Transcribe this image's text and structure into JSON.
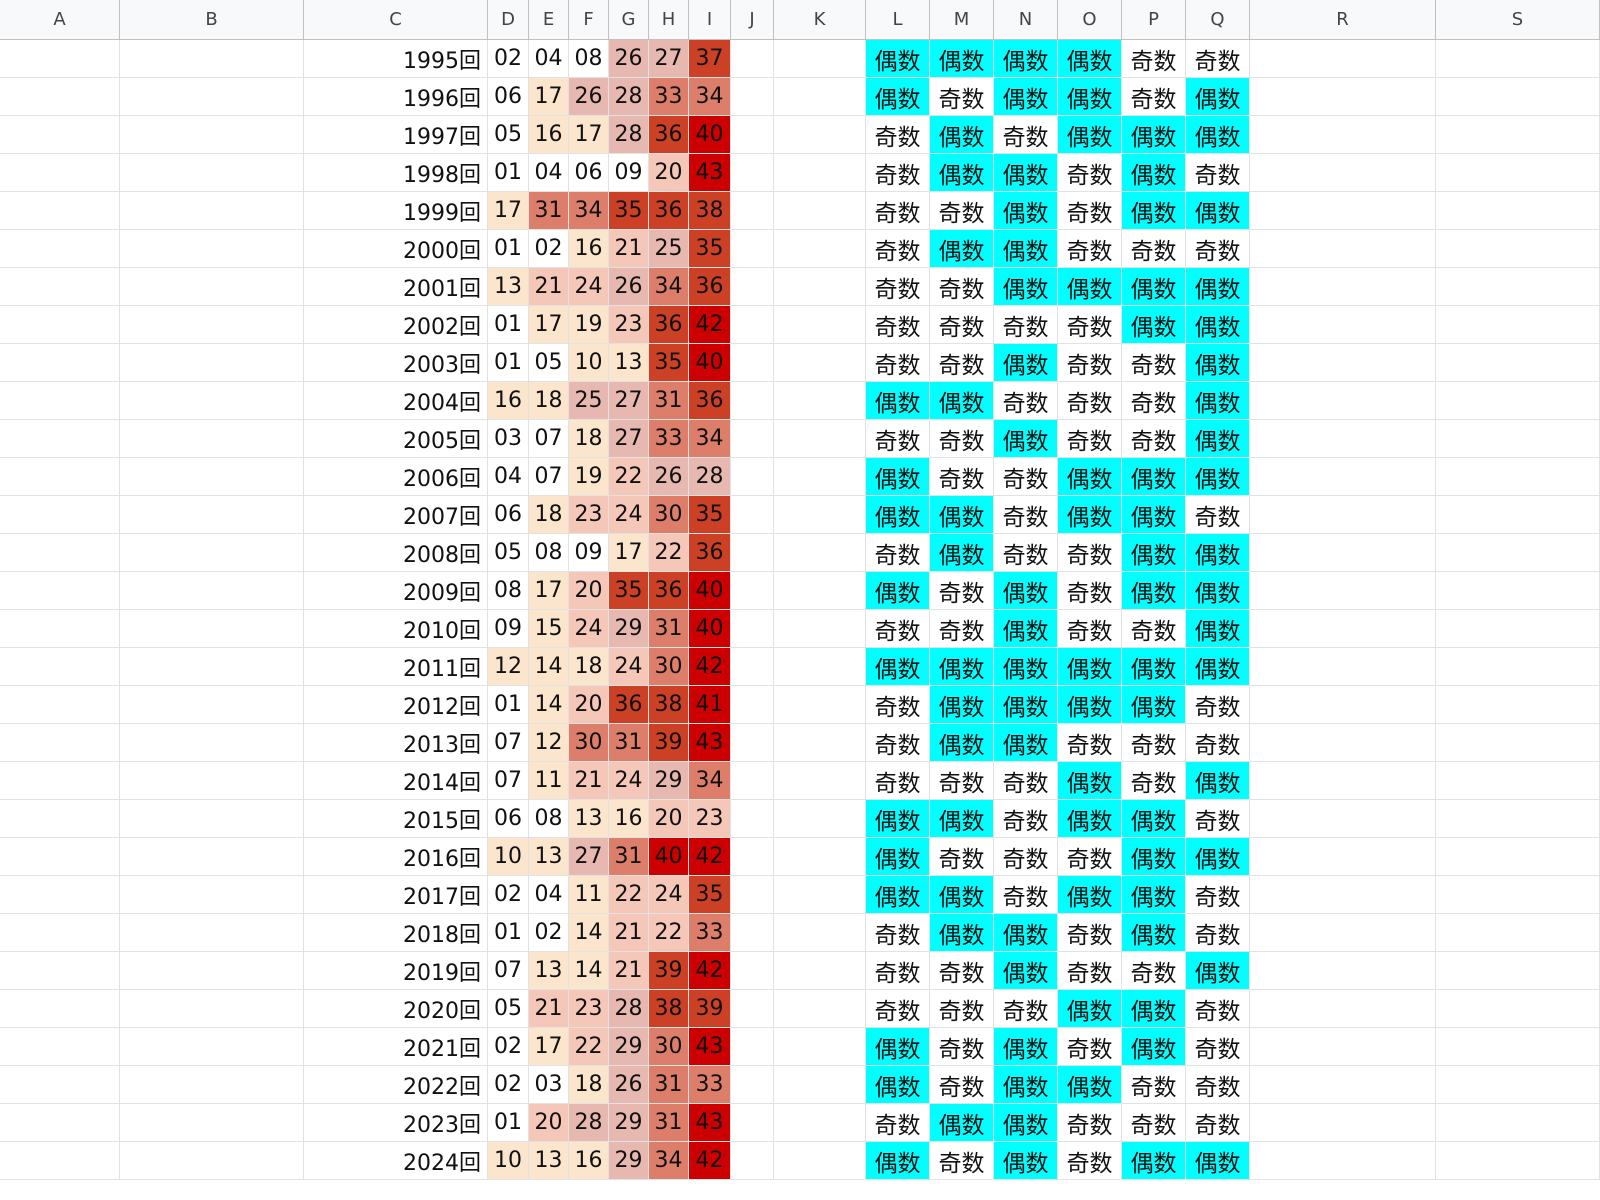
{
  "sheet": {
    "column_headers": [
      "A",
      "B",
      "C",
      "D",
      "E",
      "F",
      "G",
      "H",
      "I",
      "J",
      "K",
      "L",
      "M",
      "N",
      "O",
      "P",
      "Q",
      "R",
      "S"
    ],
    "parity_labels": {
      "even": "偶数",
      "odd": "奇数"
    },
    "colors": {
      "even_highlight": "#00ffff",
      "heat_scale": [
        "#ffffff",
        "#fce5cd",
        "#f4c7b8",
        "#e6b8af",
        "#dd7e6b",
        "#cc4125",
        "#cc0000"
      ]
    },
    "rows": [
      {
        "round": "1995回",
        "numbers": [
          "02",
          "04",
          "08",
          "26",
          "27",
          "37"
        ],
        "parity": [
          "偶数",
          "偶数",
          "偶数",
          "偶数",
          "奇数",
          "奇数"
        ]
      },
      {
        "round": "1996回",
        "numbers": [
          "06",
          "17",
          "26",
          "28",
          "33",
          "34"
        ],
        "parity": [
          "偶数",
          "奇数",
          "偶数",
          "偶数",
          "奇数",
          "偶数"
        ]
      },
      {
        "round": "1997回",
        "numbers": [
          "05",
          "16",
          "17",
          "28",
          "36",
          "40"
        ],
        "parity": [
          "奇数",
          "偶数",
          "奇数",
          "偶数",
          "偶数",
          "偶数"
        ]
      },
      {
        "round": "1998回",
        "numbers": [
          "01",
          "04",
          "06",
          "09",
          "20",
          "43"
        ],
        "parity": [
          "奇数",
          "偶数",
          "偶数",
          "奇数",
          "偶数",
          "奇数"
        ]
      },
      {
        "round": "1999回",
        "numbers": [
          "17",
          "31",
          "34",
          "35",
          "36",
          "38"
        ],
        "parity": [
          "奇数",
          "奇数",
          "偶数",
          "奇数",
          "偶数",
          "偶数"
        ]
      },
      {
        "round": "2000回",
        "numbers": [
          "01",
          "02",
          "16",
          "21",
          "25",
          "35"
        ],
        "parity": [
          "奇数",
          "偶数",
          "偶数",
          "奇数",
          "奇数",
          "奇数"
        ]
      },
      {
        "round": "2001回",
        "numbers": [
          "13",
          "21",
          "24",
          "26",
          "34",
          "36"
        ],
        "parity": [
          "奇数",
          "奇数",
          "偶数",
          "偶数",
          "偶数",
          "偶数"
        ]
      },
      {
        "round": "2002回",
        "numbers": [
          "01",
          "17",
          "19",
          "23",
          "36",
          "42"
        ],
        "parity": [
          "奇数",
          "奇数",
          "奇数",
          "奇数",
          "偶数",
          "偶数"
        ]
      },
      {
        "round": "2003回",
        "numbers": [
          "01",
          "05",
          "10",
          "13",
          "35",
          "40"
        ],
        "parity": [
          "奇数",
          "奇数",
          "偶数",
          "奇数",
          "奇数",
          "偶数"
        ]
      },
      {
        "round": "2004回",
        "numbers": [
          "16",
          "18",
          "25",
          "27",
          "31",
          "36"
        ],
        "parity": [
          "偶数",
          "偶数",
          "奇数",
          "奇数",
          "奇数",
          "偶数"
        ]
      },
      {
        "round": "2005回",
        "numbers": [
          "03",
          "07",
          "18",
          "27",
          "33",
          "34"
        ],
        "parity": [
          "奇数",
          "奇数",
          "偶数",
          "奇数",
          "奇数",
          "偶数"
        ]
      },
      {
        "round": "2006回",
        "numbers": [
          "04",
          "07",
          "19",
          "22",
          "26",
          "28"
        ],
        "parity": [
          "偶数",
          "奇数",
          "奇数",
          "偶数",
          "偶数",
          "偶数"
        ]
      },
      {
        "round": "2007回",
        "numbers": [
          "06",
          "18",
          "23",
          "24",
          "30",
          "35"
        ],
        "parity": [
          "偶数",
          "偶数",
          "奇数",
          "偶数",
          "偶数",
          "奇数"
        ]
      },
      {
        "round": "2008回",
        "numbers": [
          "05",
          "08",
          "09",
          "17",
          "22",
          "36"
        ],
        "parity": [
          "奇数",
          "偶数",
          "奇数",
          "奇数",
          "偶数",
          "偶数"
        ]
      },
      {
        "round": "2009回",
        "numbers": [
          "08",
          "17",
          "20",
          "35",
          "36",
          "40"
        ],
        "parity": [
          "偶数",
          "奇数",
          "偶数",
          "奇数",
          "偶数",
          "偶数"
        ]
      },
      {
        "round": "2010回",
        "numbers": [
          "09",
          "15",
          "24",
          "29",
          "31",
          "40"
        ],
        "parity": [
          "奇数",
          "奇数",
          "偶数",
          "奇数",
          "奇数",
          "偶数"
        ]
      },
      {
        "round": "2011回",
        "numbers": [
          "12",
          "14",
          "18",
          "24",
          "30",
          "42"
        ],
        "parity": [
          "偶数",
          "偶数",
          "偶数",
          "偶数",
          "偶数",
          "偶数"
        ]
      },
      {
        "round": "2012回",
        "numbers": [
          "01",
          "14",
          "20",
          "36",
          "38",
          "41"
        ],
        "parity": [
          "奇数",
          "偶数",
          "偶数",
          "偶数",
          "偶数",
          "奇数"
        ]
      },
      {
        "round": "2013回",
        "numbers": [
          "07",
          "12",
          "30",
          "31",
          "39",
          "43"
        ],
        "parity": [
          "奇数",
          "偶数",
          "偶数",
          "奇数",
          "奇数",
          "奇数"
        ]
      },
      {
        "round": "2014回",
        "numbers": [
          "07",
          "11",
          "21",
          "24",
          "29",
          "34"
        ],
        "parity": [
          "奇数",
          "奇数",
          "奇数",
          "偶数",
          "奇数",
          "偶数"
        ]
      },
      {
        "round": "2015回",
        "numbers": [
          "06",
          "08",
          "13",
          "16",
          "20",
          "23"
        ],
        "parity": [
          "偶数",
          "偶数",
          "奇数",
          "偶数",
          "偶数",
          "奇数"
        ]
      },
      {
        "round": "2016回",
        "numbers": [
          "10",
          "13",
          "27",
          "31",
          "40",
          "42"
        ],
        "parity": [
          "偶数",
          "奇数",
          "奇数",
          "奇数",
          "偶数",
          "偶数"
        ]
      },
      {
        "round": "2017回",
        "numbers": [
          "02",
          "04",
          "11",
          "22",
          "24",
          "35"
        ],
        "parity": [
          "偶数",
          "偶数",
          "奇数",
          "偶数",
          "偶数",
          "奇数"
        ]
      },
      {
        "round": "2018回",
        "numbers": [
          "01",
          "02",
          "14",
          "21",
          "22",
          "33"
        ],
        "parity": [
          "奇数",
          "偶数",
          "偶数",
          "奇数",
          "偶数",
          "奇数"
        ]
      },
      {
        "round": "2019回",
        "numbers": [
          "07",
          "13",
          "14",
          "21",
          "39",
          "42"
        ],
        "parity": [
          "奇数",
          "奇数",
          "偶数",
          "奇数",
          "奇数",
          "偶数"
        ]
      },
      {
        "round": "2020回",
        "numbers": [
          "05",
          "21",
          "23",
          "28",
          "38",
          "39"
        ],
        "parity": [
          "奇数",
          "奇数",
          "奇数",
          "偶数",
          "偶数",
          "奇数"
        ]
      },
      {
        "round": "2021回",
        "numbers": [
          "02",
          "17",
          "22",
          "29",
          "30",
          "43"
        ],
        "parity": [
          "偶数",
          "奇数",
          "偶数",
          "奇数",
          "偶数",
          "奇数"
        ]
      },
      {
        "round": "2022回",
        "numbers": [
          "02",
          "03",
          "18",
          "26",
          "31",
          "33"
        ],
        "parity": [
          "偶数",
          "奇数",
          "偶数",
          "偶数",
          "奇数",
          "奇数"
        ]
      },
      {
        "round": "2023回",
        "numbers": [
          "01",
          "20",
          "28",
          "29",
          "31",
          "43"
        ],
        "parity": [
          "奇数",
          "偶数",
          "偶数",
          "奇数",
          "奇数",
          "奇数"
        ]
      },
      {
        "round": "2024回",
        "numbers": [
          "10",
          "13",
          "16",
          "29",
          "34",
          "42"
        ],
        "parity": [
          "偶数",
          "奇数",
          "偶数",
          "奇数",
          "偶数",
          "偶数"
        ]
      }
    ]
  }
}
